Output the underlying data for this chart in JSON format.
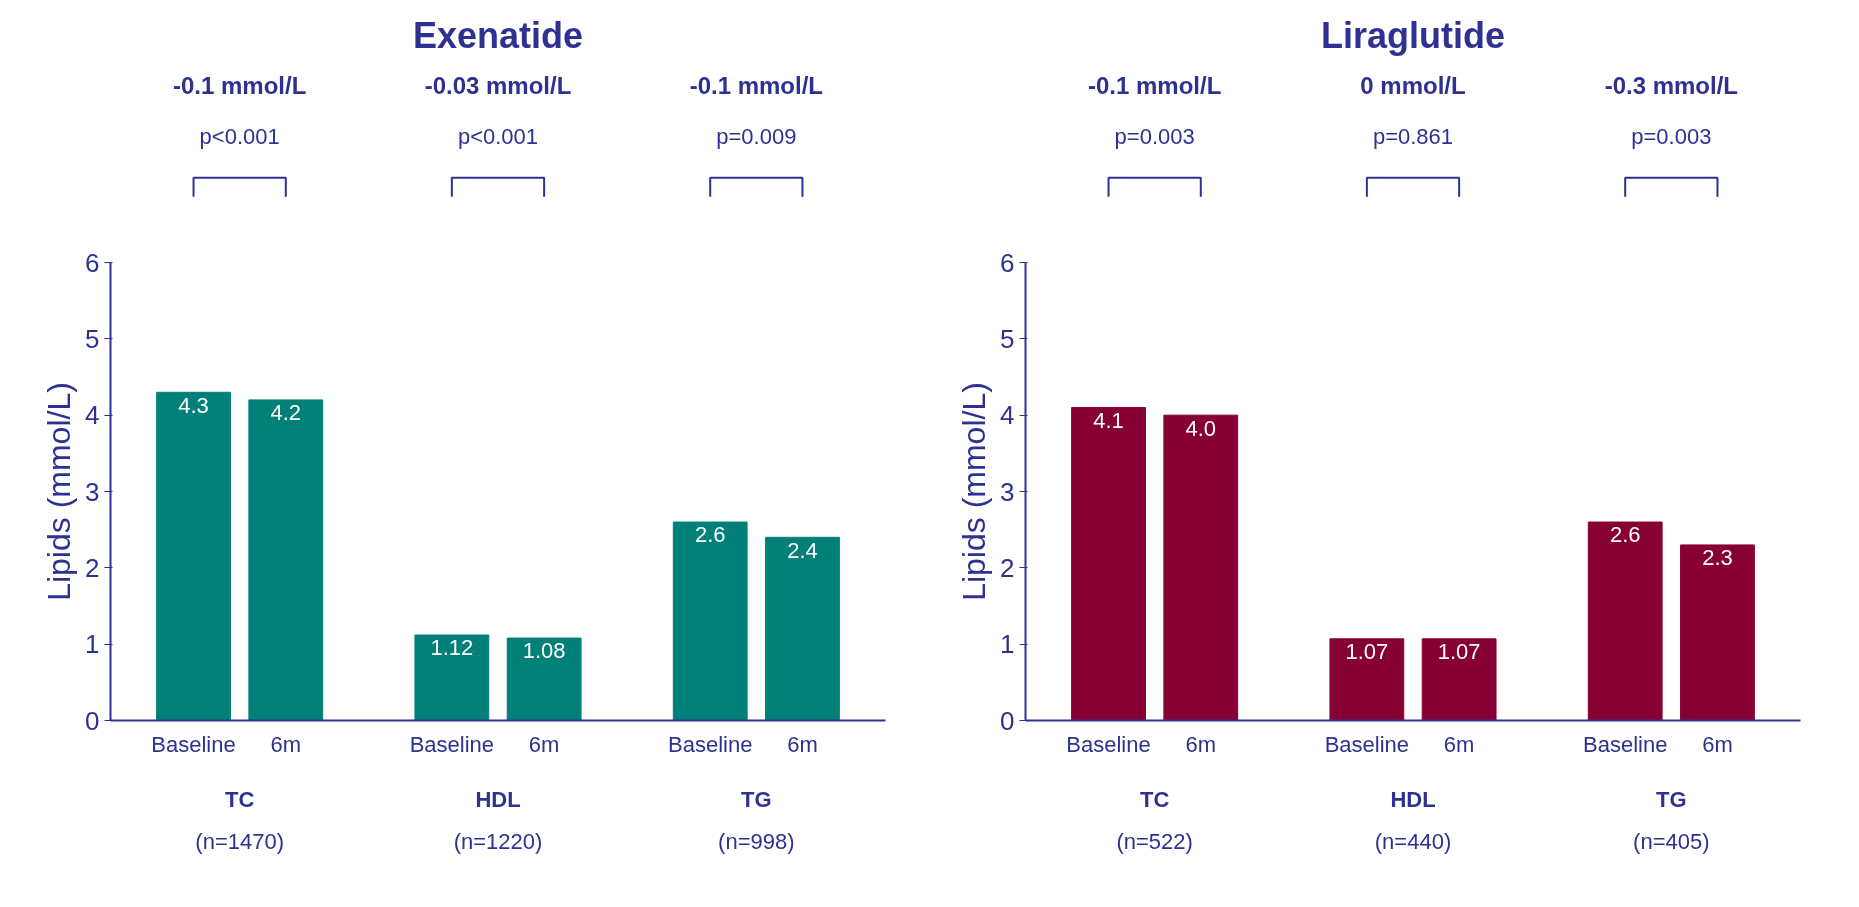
{
  "chart_data": [
    {
      "type": "bar",
      "title": "Exenatide",
      "ylabel": "Lipids (mmol/L)",
      "categories": [
        "Baseline",
        "6m",
        "Baseline",
        "6m",
        "Baseline",
        "6m"
      ],
      "values": [
        4.3,
        4.2,
        1.12,
        1.08,
        2.6,
        2.4
      ],
      "color": "#008078",
      "value_labels": [
        "4.3",
        "4.2",
        "1.12",
        "1.08",
        "2.6",
        "2.4"
      ],
      "ylim": [
        0,
        6
      ],
      "yticks": [
        0,
        1,
        2,
        3,
        4,
        5,
        6
      ],
      "grid": false,
      "annotations": [
        "-0.1 mmol/L",
        "p<0.001",
        "TC",
        "(n=1470)",
        "-0.03 mmol/L",
        "p<0.001",
        "HDL",
        "(n=1220)",
        "-0.1 mmol/L",
        "p=0.009",
        "TG",
        "(n=998)"
      ]
    },
    {
      "type": "bar",
      "title": "Liraglutide",
      "ylabel": "Lipids (mmol/L)",
      "categories": [
        "Baseline",
        "6m",
        "Baseline",
        "6m",
        "Baseline",
        "6m"
      ],
      "values": [
        4.1,
        4.0,
        1.07,
        1.07,
        2.6,
        2.3
      ],
      "color": "#870033",
      "value_labels": [
        "4.1",
        "4.0",
        "1.07",
        "1.07",
        "2.6",
        "2.3"
      ],
      "ylim": [
        0,
        6
      ],
      "yticks": [
        0,
        1,
        2,
        3,
        4,
        5,
        6
      ],
      "grid": false,
      "annotations": [
        "-0.1 mmol/L",
        "p=0.003",
        "TC",
        "(n=522)",
        "0 mmol/L",
        "p=0.861",
        "HDL",
        "(n=440)",
        "-0.3 mmol/L",
        "p=0.003",
        "TG",
        "(n=405)"
      ]
    }
  ]
}
